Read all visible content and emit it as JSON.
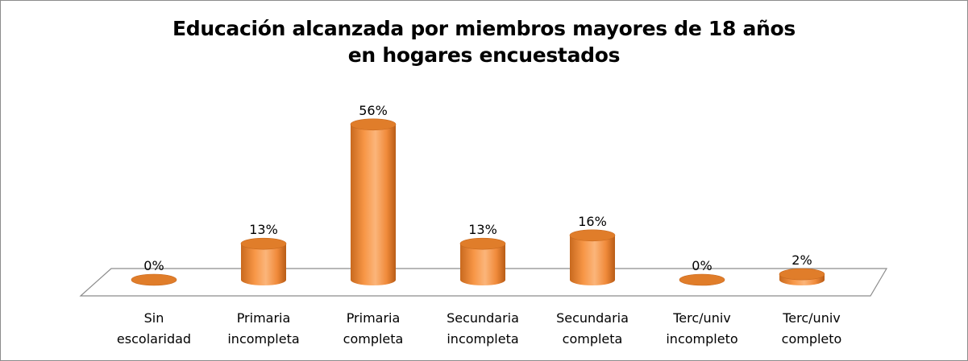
{
  "chart_data": {
    "type": "bar",
    "style": "3d-cylinder",
    "title": [
      "Educación alcanzada por miembros mayores de 18 años",
      "en hogares encuestados"
    ],
    "categories": [
      [
        "Sin",
        "escolaridad"
      ],
      [
        "Primaria",
        "incompleta"
      ],
      [
        "Primaria",
        "completa"
      ],
      [
        "Secundaria",
        "incompleta"
      ],
      [
        "Secundaria",
        "completa"
      ],
      [
        "Terc/univ",
        "incompleto"
      ],
      [
        "Terc/univ",
        "completo"
      ]
    ],
    "values": [
      0,
      13,
      56,
      13,
      16,
      0,
      2
    ],
    "data_labels": [
      "0%",
      "13%",
      "56%",
      "13%",
      "16%",
      "0%",
      "2%"
    ],
    "ylim": [
      0,
      60
    ],
    "grid": false,
    "legend": "none",
    "colors": {
      "bar_face": "#f79646",
      "bar_light": "#fbb57a",
      "bar_dark": "#c8691e",
      "bar_top": "#e07d2a",
      "floor_line": "#8c8c8c"
    }
  }
}
